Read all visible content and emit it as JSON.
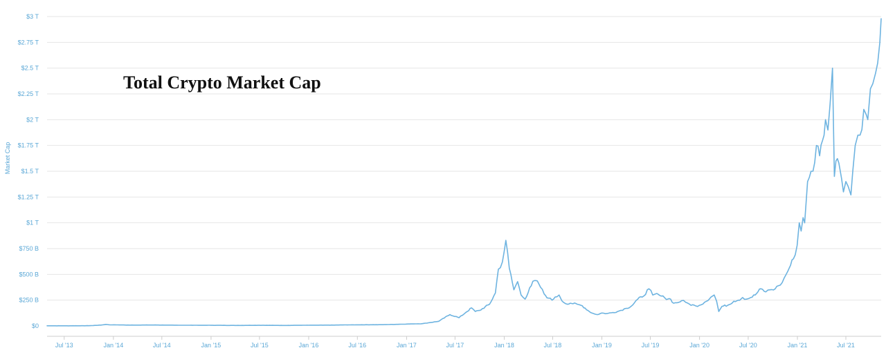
{
  "chart_data": {
    "type": "line",
    "title": "Total Crypto Market Cap",
    "ylabel": "Market Cap",
    "xlabel": "",
    "ylim": [
      0,
      3000
    ],
    "xlim": [
      "2013-04-28",
      "2021-11-10"
    ],
    "grid": true,
    "legend": "none",
    "colors": {
      "series": "#6db3e0",
      "grid": "#e6e6e6",
      "ticks": "#5aa7d6"
    },
    "y_ticks": [
      {
        "value": 0,
        "label": "$0"
      },
      {
        "value": 250,
        "label": "$250 B"
      },
      {
        "value": 500,
        "label": "$500 B"
      },
      {
        "value": 750,
        "label": "$750 B"
      },
      {
        "value": 1000,
        "label": "$1 T"
      },
      {
        "value": 1250,
        "label": "$1.25 T"
      },
      {
        "value": 1500,
        "label": "$1.5 T"
      },
      {
        "value": 1750,
        "label": "$1.75 T"
      },
      {
        "value": 2000,
        "label": "$2 T"
      },
      {
        "value": 2250,
        "label": "$2.25 T"
      },
      {
        "value": 2500,
        "label": "$2.5 T"
      },
      {
        "value": 2750,
        "label": "$2.75 T"
      },
      {
        "value": 3000,
        "label": "$3 T"
      }
    ],
    "x_ticks": [
      {
        "value": "2013-07-01",
        "label": "Jul '13"
      },
      {
        "value": "2014-01-01",
        "label": "Jan '14"
      },
      {
        "value": "2014-07-01",
        "label": "Jul '14"
      },
      {
        "value": "2015-01-01",
        "label": "Jan '15"
      },
      {
        "value": "2015-07-01",
        "label": "Jul '15"
      },
      {
        "value": "2016-01-01",
        "label": "Jan '16"
      },
      {
        "value": "2016-07-01",
        "label": "Jul '16"
      },
      {
        "value": "2017-01-01",
        "label": "Jan '17"
      },
      {
        "value": "2017-07-01",
        "label": "Jul '17"
      },
      {
        "value": "2018-01-01",
        "label": "Jan '18"
      },
      {
        "value": "2018-07-01",
        "label": "Jul '18"
      },
      {
        "value": "2019-01-01",
        "label": "Jan '19"
      },
      {
        "value": "2019-07-01",
        "label": "Jul '19"
      },
      {
        "value": "2020-01-01",
        "label": "Jan '20"
      },
      {
        "value": "2020-07-01",
        "label": "Jul '20"
      },
      {
        "value": "2021-01-01",
        "label": "Jan '21"
      },
      {
        "value": "2021-07-01",
        "label": "Jul '21"
      }
    ],
    "y_unit": "billions USD",
    "series": [
      {
        "x": [
          "2013-04-28",
          "2013-07-01",
          "2013-10-01",
          "2013-11-15",
          "2013-12-04",
          "2013-12-20",
          "2014-01-01",
          "2014-03-01",
          "2014-06-01",
          "2014-09-01",
          "2015-01-01",
          "2015-04-01",
          "2015-07-01",
          "2015-10-01",
          "2016-01-01",
          "2016-04-01",
          "2016-07-01",
          "2016-10-01",
          "2017-01-01",
          "2017-03-01",
          "2017-05-01",
          "2017-06-12",
          "2017-07-16",
          "2017-08-10",
          "2017-09-01",
          "2017-09-15",
          "2017-10-01",
          "2017-11-07",
          "2017-11-29",
          "2017-12-10",
          "2017-12-25",
          "2018-01-07",
          "2018-01-20",
          "2018-02-06",
          "2018-02-20",
          "2018-03-05",
          "2018-03-20",
          "2018-04-06",
          "2018-04-24",
          "2018-05-10",
          "2018-05-30",
          "2018-06-15",
          "2018-06-29",
          "2018-07-10",
          "2018-07-25",
          "2018-08-10",
          "2018-08-25",
          "2018-09-05",
          "2018-09-15",
          "2018-10-01",
          "2018-10-20",
          "2018-11-10",
          "2018-11-20",
          "2018-12-01",
          "2018-12-15",
          "2019-01-01",
          "2019-01-20",
          "2019-02-10",
          "2019-03-01",
          "2019-04-01",
          "2019-04-20",
          "2019-05-15",
          "2019-06-01",
          "2019-06-26",
          "2019-07-10",
          "2019-07-20",
          "2019-08-10",
          "2019-08-25",
          "2019-09-15",
          "2019-09-26",
          "2019-10-10",
          "2019-10-26",
          "2019-11-10",
          "2019-11-25",
          "2019-12-17",
          "2020-01-01",
          "2020-01-20",
          "2020-02-13",
          "2020-02-25",
          "2020-03-05",
          "2020-03-13",
          "2020-03-25",
          "2020-04-15",
          "2020-05-08",
          "2020-05-25",
          "2020-06-10",
          "2020-06-25",
          "2020-07-10",
          "2020-07-27",
          "2020-08-17",
          "2020-09-05",
          "2020-09-20",
          "2020-10-10",
          "2020-10-22",
          "2020-11-05",
          "2020-11-20",
          "2020-12-01",
          "2020-12-17",
          "2020-12-31",
          "2021-01-08",
          "2021-01-15",
          "2021-01-22",
          "2021-01-28",
          "2021-02-08",
          "2021-02-21",
          "2021-02-28",
          "2021-03-13",
          "2021-03-25",
          "2021-04-05",
          "2021-04-16",
          "2021-04-25",
          "2021-05-03",
          "2021-05-12",
          "2021-05-19",
          "2021-05-25",
          "2021-06-05",
          "2021-06-15",
          "2021-06-22",
          "2021-07-01",
          "2021-07-10",
          "2021-07-20",
          "2021-07-27",
          "2021-08-05",
          "2021-08-15",
          "2021-08-23",
          "2021-09-06",
          "2021-09-15",
          "2021-09-21",
          "2021-10-01",
          "2021-10-10",
          "2021-10-20",
          "2021-10-28",
          "2021-11-05",
          "2021-11-10"
        ],
        "values": [
          1.5,
          1.3,
          2.0,
          8,
          15,
          10,
          11,
          8,
          9,
          7,
          6,
          5,
          6,
          5,
          7,
          8,
          11,
          12,
          18,
          22,
          45,
          110,
          80,
          130,
          175,
          140,
          150,
          210,
          320,
          550,
          620,
          830,
          560,
          350,
          430,
          300,
          260,
          370,
          440,
          410,
          310,
          270,
          250,
          280,
          300,
          230,
          210,
          220,
          215,
          210,
          195,
          150,
          130,
          120,
          110,
          125,
          120,
          130,
          140,
          170,
          190,
          260,
          280,
          360,
          300,
          310,
          290,
          270,
          260,
          220,
          225,
          245,
          230,
          210,
          195,
          200,
          230,
          280,
          300,
          240,
          140,
          190,
          200,
          240,
          250,
          275,
          260,
          275,
          300,
          360,
          330,
          350,
          360,
          390,
          420,
          500,
          560,
          650,
          780,
          1000,
          920,
          1050,
          1000,
          1400,
          1500,
          1500,
          1750,
          1650,
          1800,
          2000,
          1900,
          2150,
          2500,
          1450,
          1600,
          1580,
          1430,
          1300,
          1400,
          1350,
          1270,
          1500,
          1750,
          1850,
          1850,
          2100,
          2050,
          2000,
          2300,
          2350,
          2450,
          2550,
          2750,
          2980
        ]
      }
    ]
  }
}
